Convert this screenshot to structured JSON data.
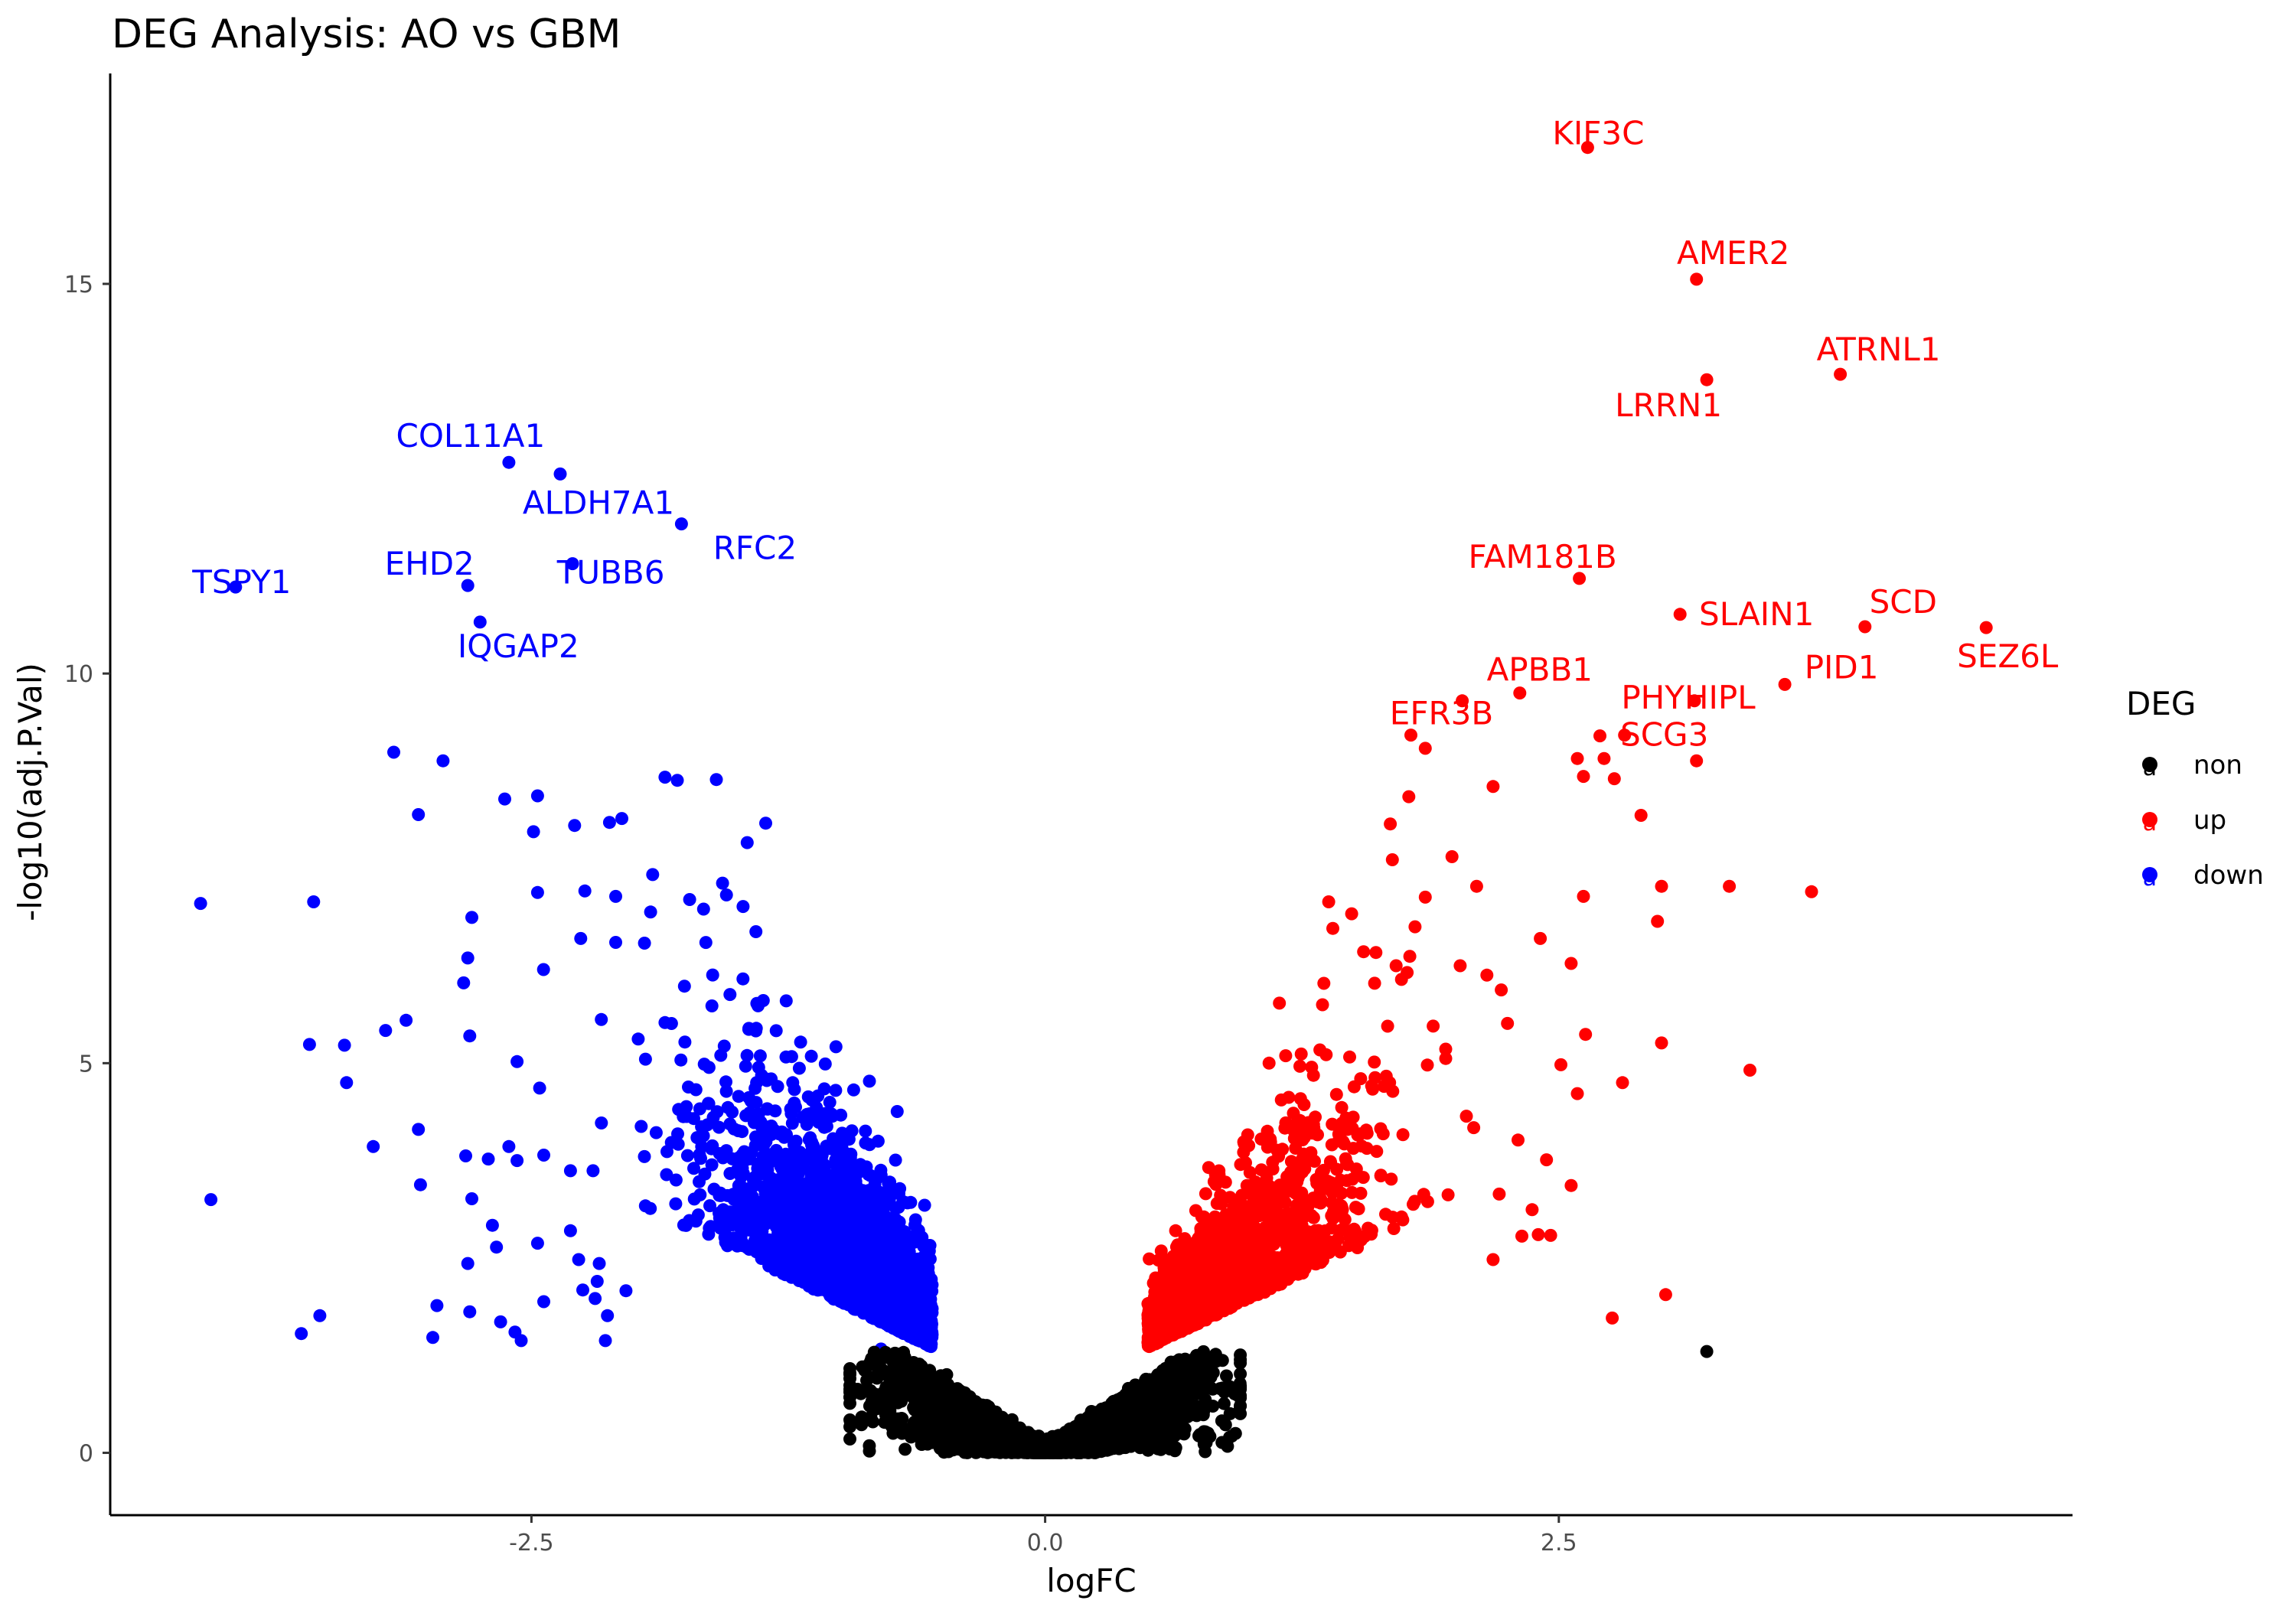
{
  "chart_data": {
    "type": "scatter",
    "title": "DEG Analysis: AO vs GBM",
    "xlabel": "logFC",
    "ylabel": "-log10(adj.P.Val)",
    "xlim": [
      -4.55,
      5.0
    ],
    "ylim": [
      -0.8,
      17.7
    ],
    "x_ticks": [
      -2.5,
      0.0,
      2.5
    ],
    "x_tick_labels": [
      "-2.5",
      "0.0",
      "2.5"
    ],
    "y_ticks": [
      0,
      5,
      10,
      15
    ],
    "y_tick_labels": [
      "0",
      "5",
      "10",
      "15"
    ],
    "grid": false,
    "legend": {
      "title": "DEG",
      "placement": "right",
      "key_glyph": "a",
      "entries": [
        {
          "name": "non",
          "color": "#000000"
        },
        {
          "name": "up",
          "color": "#ff0000"
        },
        {
          "name": "down",
          "color": "#0000ff"
        }
      ]
    },
    "colors": {
      "non": "#000000",
      "up": "#ff0000",
      "down": "#0000ff"
    },
    "thresholds": {
      "logFC": 0.5,
      "neg_log10_padj": 1.3
    },
    "series": [
      {
        "name": "up",
        "labeled_points": [
          {
            "label": "KIF3C",
            "x": 2.64,
            "y": 16.75
          },
          {
            "label": "AMER2",
            "x": 3.17,
            "y": 15.06
          },
          {
            "label": "ATRNL1",
            "x": 3.87,
            "y": 13.84
          },
          {
            "label": "LRRN1",
            "x": 3.22,
            "y": 13.77
          },
          {
            "label": "FAM181B",
            "x": 2.6,
            "y": 11.22
          },
          {
            "label": "SLAIN1",
            "x": 3.09,
            "y": 10.76
          },
          {
            "label": "SCD",
            "x": 3.99,
            "y": 10.6
          },
          {
            "label": "SEZ6L",
            "x": 4.58,
            "y": 10.59
          },
          {
            "label": "APBB1",
            "x": 2.31,
            "y": 9.75
          },
          {
            "label": "PHYHIPL",
            "x": 3.16,
            "y": 9.65
          },
          {
            "label": "PID1",
            "x": 3.6,
            "y": 9.86
          },
          {
            "label": "EFR3B",
            "x": 1.78,
            "y": 9.21
          },
          {
            "label": "SCG3",
            "x": 2.82,
            "y": 9.21
          }
        ],
        "outlier_points": [
          [
            2.03,
            9.65
          ],
          [
            2.59,
            8.91
          ],
          [
            2.7,
            9.2
          ],
          [
            2.72,
            8.91
          ],
          [
            2.62,
            8.68
          ],
          [
            2.77,
            8.65
          ],
          [
            2.9,
            8.18
          ],
          [
            3.17,
            8.88
          ],
          [
            2.18,
            8.55
          ],
          [
            1.77,
            8.42
          ],
          [
            1.85,
            9.04
          ],
          [
            3.0,
            7.27
          ],
          [
            3.33,
            7.27
          ],
          [
            3.73,
            7.2
          ],
          [
            2.98,
            6.82
          ],
          [
            3.0,
            5.26
          ],
          [
            3.43,
            4.91
          ],
          [
            2.81,
            4.75
          ],
          [
            3.02,
            2.03
          ],
          [
            2.76,
            1.73
          ],
          [
            2.62,
            7.14
          ],
          [
            2.56,
            6.28
          ],
          [
            2.63,
            5.37
          ],
          [
            2.51,
            4.98
          ],
          [
            2.59,
            4.61
          ],
          [
            2.41,
            6.6
          ],
          [
            1.98,
            7.65
          ],
          [
            2.1,
            7.27
          ],
          [
            1.68,
            8.07
          ],
          [
            1.69,
            7.61
          ],
          [
            1.85,
            7.13
          ],
          [
            2.15,
            6.13
          ],
          [
            2.25,
            5.51
          ],
          [
            2.44,
            3.76
          ],
          [
            2.56,
            3.43
          ],
          [
            2.46,
            2.79
          ],
          [
            2.18,
            2.48
          ],
          [
            2.32,
            2.78
          ],
          [
            2.37,
            3.12
          ],
          [
            2.02,
            6.25
          ],
          [
            1.8,
            6.75
          ],
          [
            1.4,
            6.73
          ],
          [
            1.55,
            6.43
          ],
          [
            2.22,
            5.94
          ],
          [
            1.61,
            6.42
          ],
          [
            1.38,
            7.07
          ],
          [
            2.21,
            3.32
          ],
          [
            2.05,
            4.32
          ],
          [
            2.4,
            2.8
          ],
          [
            1.14,
            5.77
          ],
          [
            1.35,
            5.75
          ],
          [
            1.09,
            5.0
          ],
          [
            1.24,
            4.96
          ]
        ]
      },
      {
        "name": "down",
        "labeled_points": [
          {
            "label": "COL11A1",
            "x": -2.61,
            "y": 12.71
          },
          {
            "label": "ALDH7A1",
            "x": -2.36,
            "y": 12.56
          },
          {
            "label": "RFC2",
            "x": -1.77,
            "y": 11.92
          },
          {
            "label": "TSPY1",
            "x": -3.94,
            "y": 11.11
          },
          {
            "label": "EHD2",
            "x": -2.81,
            "y": 11.13
          },
          {
            "label": "TUBB6",
            "x": -2.3,
            "y": 11.41
          },
          {
            "label": "IQGAP2",
            "x": -2.75,
            "y": 10.66
          }
        ],
        "outlier_points": [
          [
            -3.17,
            8.99
          ],
          [
            -2.93,
            8.88
          ],
          [
            -3.05,
            8.19
          ],
          [
            -2.63,
            8.39
          ],
          [
            -2.47,
            8.43
          ],
          [
            -2.49,
            7.97
          ],
          [
            -2.29,
            8.05
          ],
          [
            -2.12,
            8.09
          ],
          [
            -2.06,
            8.14
          ],
          [
            -1.85,
            8.67
          ],
          [
            -1.79,
            8.63
          ],
          [
            -1.6,
            8.64
          ],
          [
            -1.36,
            8.08
          ],
          [
            -1.45,
            7.83
          ],
          [
            -4.11,
            7.05
          ],
          [
            -3.56,
            7.07
          ],
          [
            -2.47,
            7.19
          ],
          [
            -2.24,
            7.21
          ],
          [
            -2.79,
            6.87
          ],
          [
            -2.81,
            6.35
          ],
          [
            -2.83,
            6.03
          ],
          [
            -2.8,
            5.35
          ],
          [
            -3.21,
            5.42
          ],
          [
            -3.11,
            5.55
          ],
          [
            -3.58,
            5.24
          ],
          [
            -3.41,
            5.23
          ],
          [
            -3.4,
            4.75
          ],
          [
            -2.57,
            5.02
          ],
          [
            -2.46,
            4.68
          ],
          [
            -3.27,
            3.93
          ],
          [
            -3.05,
            4.15
          ],
          [
            -2.82,
            3.81
          ],
          [
            -2.61,
            3.93
          ],
          [
            -2.71,
            3.77
          ],
          [
            -2.57,
            3.75
          ],
          [
            -2.44,
            3.82
          ],
          [
            -2.31,
            3.62
          ],
          [
            -2.79,
            3.26
          ],
          [
            -3.04,
            3.44
          ],
          [
            -4.06,
            3.25
          ],
          [
            -2.69,
            2.92
          ],
          [
            -2.67,
            2.64
          ],
          [
            -2.47,
            2.69
          ],
          [
            -2.81,
            2.43
          ],
          [
            -2.96,
            1.89
          ],
          [
            -2.8,
            1.81
          ],
          [
            -2.98,
            1.48
          ],
          [
            -3.53,
            1.76
          ],
          [
            -3.62,
            1.53
          ],
          [
            -2.65,
            1.68
          ],
          [
            -2.58,
            1.55
          ],
          [
            -2.55,
            1.44
          ],
          [
            -2.44,
            1.94
          ],
          [
            -2.27,
            2.48
          ],
          [
            -2.31,
            2.85
          ],
          [
            -2.18,
            2.2
          ],
          [
            -2.17,
            2.43
          ],
          [
            -2.25,
            2.09
          ],
          [
            -2.04,
            2.08
          ],
          [
            -2.13,
            1.76
          ],
          [
            -2.14,
            1.44
          ],
          [
            -2.19,
            1.98
          ],
          [
            -2.2,
            3.62
          ],
          [
            -2.26,
            6.6
          ],
          [
            -2.16,
            5.56
          ],
          [
            -2.09,
            6.55
          ],
          [
            -2.09,
            7.14
          ],
          [
            -1.91,
            7.42
          ],
          [
            -1.92,
            6.94
          ],
          [
            -1.95,
            6.54
          ],
          [
            -1.57,
            7.31
          ],
          [
            -1.73,
            7.1
          ],
          [
            -1.47,
            7.01
          ],
          [
            -1.26,
            5.8
          ],
          [
            -1.19,
            5.27
          ],
          [
            -1.07,
            4.99
          ],
          [
            -0.72,
            4.38
          ]
        ]
      }
    ],
    "point_counts": {
      "non": 6000,
      "up": 1700,
      "down": 3000
    }
  }
}
